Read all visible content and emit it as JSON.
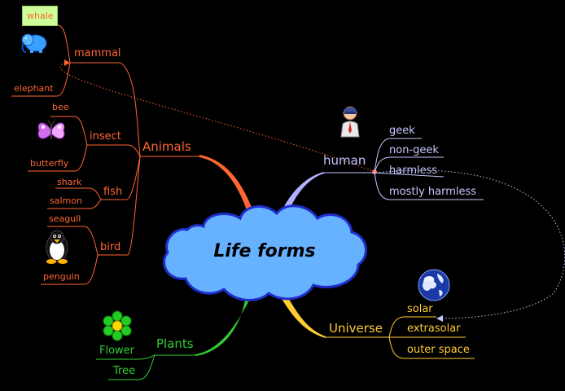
{
  "center": {
    "title": "Life forms"
  },
  "animals": {
    "label": "Animals",
    "mammal": {
      "label": "mammal",
      "children": [
        "whale",
        "elephant"
      ]
    },
    "insect": {
      "label": "insect",
      "children": [
        "bee",
        "butterfly"
      ]
    },
    "fish": {
      "label": "fish",
      "children": [
        "shark",
        "salmon"
      ]
    },
    "bird": {
      "label": "bird",
      "children": [
        "seagull",
        "penguin"
      ]
    }
  },
  "human": {
    "label": "human",
    "children": [
      "geek",
      "non-geek",
      "harmless",
      "mostly harmless"
    ]
  },
  "universe": {
    "label": "Universe",
    "children": [
      "solar",
      "extrasolar",
      "outer space"
    ]
  },
  "plants": {
    "label": "Plants",
    "children": [
      "Flower",
      "Tree"
    ]
  },
  "colors": {
    "animals": "#ff6633",
    "human": "#c6c6ff",
    "universe": "#ffcc33",
    "plants": "#33cc33",
    "cloud": "#66b2ff",
    "cloud_border": "#1f2dcc",
    "highlight": "#ccff99"
  },
  "icons": [
    "elephant-icon",
    "butterfly-icon",
    "penguin-icon",
    "person-icon",
    "globe-icon",
    "flower-icon"
  ]
}
